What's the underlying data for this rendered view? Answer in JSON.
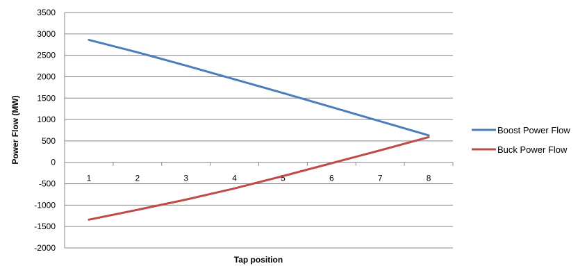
{
  "chart_data": {
    "type": "line",
    "title": "",
    "xlabel": "Tap position",
    "ylabel": "Power Flow (MW)",
    "categories": [
      "1",
      "2",
      "3",
      "4",
      "5",
      "6",
      "7",
      "8"
    ],
    "ylim": [
      -2000,
      3500
    ],
    "ytick_step": 500,
    "yticks": [
      "3500",
      "3000",
      "2500",
      "2000",
      "1500",
      "1000",
      "500",
      "0",
      "-500",
      "-1000",
      "-1500",
      "-2000"
    ],
    "grid": true,
    "legend_position": "right",
    "series": [
      {
        "name": "Boost Power Flow",
        "color": "#4A7EBB",
        "values": [
          2860,
          2570,
          2260,
          1940,
          1620,
          1290,
          960,
          630
        ]
      },
      {
        "name": "Buck Power Flow",
        "color": "#BE4B48",
        "values": [
          -1340,
          -1110,
          -870,
          -610,
          -320,
          -20,
          280,
          590
        ]
      }
    ]
  }
}
